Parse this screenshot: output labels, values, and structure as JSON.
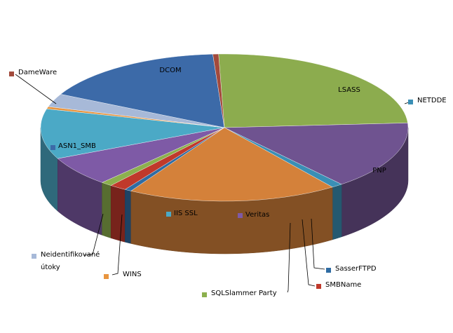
{
  "chart_data": {
    "type": "pie",
    "style": "3d-exploded",
    "legend": "none",
    "slices": [
      {
        "name": "DCOM",
        "value": 24.5,
        "color": "#8cac4e"
      },
      {
        "name": "LSASS",
        "value": 15.0,
        "color": "#6f5390"
      },
      {
        "name": "NETDDE",
        "value": 1.0,
        "color": "#3a8fb5"
      },
      {
        "name": "PNP",
        "value": 18.5,
        "color": "#d4813a"
      },
      {
        "name": "SasserFTPD",
        "value": 0.6,
        "color": "#2f6ca3"
      },
      {
        "name": "SMBName",
        "value": 1.5,
        "color": "#c0392b"
      },
      {
        "name": "SQLSlammer Party",
        "value": 1.0,
        "color": "#8cb04e"
      },
      {
        "name": "Veritas",
        "value": 6.5,
        "color": "#7e5aa6"
      },
      {
        "name": "IIS SSL",
        "value": 11.0,
        "color": "#4ba9c6"
      },
      {
        "name": "WINS",
        "value": 0.5,
        "color": "#e8953f"
      },
      {
        "name": "Neidentifikované útoky",
        "value": 2.9,
        "color": "#a7b9d8"
      },
      {
        "name": "ASN1_SMB",
        "value": 16.5,
        "color": "#3c6aa8"
      },
      {
        "name": "DameWare",
        "value": 0.5,
        "color": "#a24a3c"
      }
    ]
  }
}
